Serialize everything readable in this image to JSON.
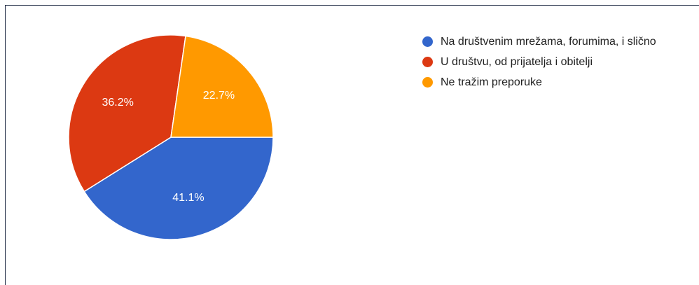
{
  "chart_data": {
    "type": "pie",
    "slices": [
      {
        "label": "Na društvenim mrežama, forumima, i slično",
        "value": 41.1,
        "value_label": "41.1%",
        "color": "#3366cc"
      },
      {
        "label": "U društvu, od prijatelja i obitelji",
        "value": 36.2,
        "value_label": "36.2%",
        "color": "#dc3912"
      },
      {
        "label": "Ne tražim preporuke",
        "value": 22.7,
        "value_label": "22.7%",
        "color": "#ff9900"
      }
    ],
    "legend_position": "right"
  }
}
